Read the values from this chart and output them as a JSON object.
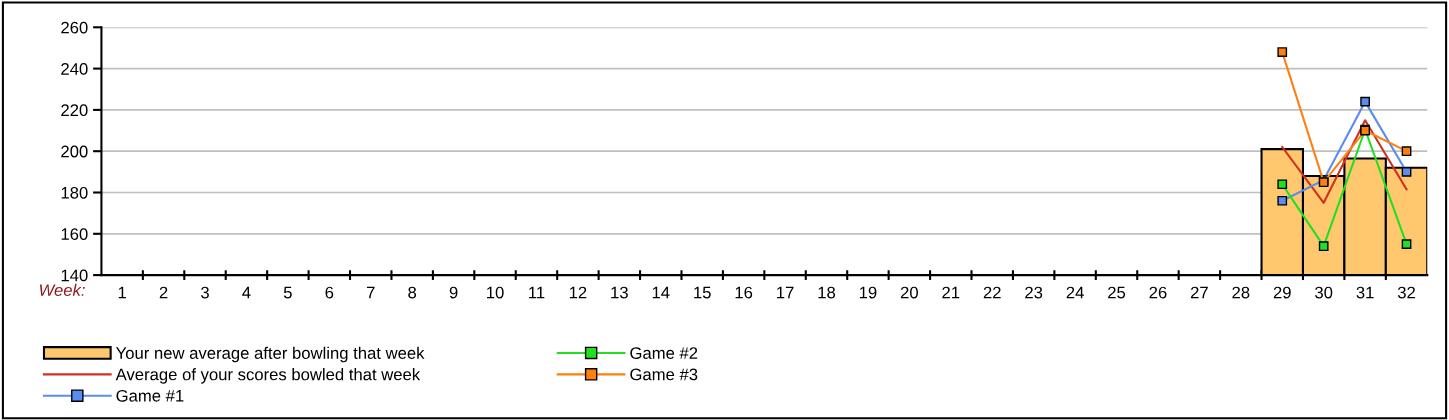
{
  "chart_data": {
    "type": "bar",
    "xlabel": "Week:",
    "categories": [
      "1",
      "2",
      "3",
      "4",
      "5",
      "6",
      "7",
      "8",
      "9",
      "10",
      "11",
      "12",
      "13",
      "14",
      "15",
      "16",
      "17",
      "18",
      "19",
      "20",
      "21",
      "22",
      "23",
      "24",
      "25",
      "26",
      "27",
      "28",
      "29",
      "30",
      "31",
      "32"
    ],
    "series": [
      {
        "name": "Your new average after bowling that week",
        "color": "#ffc86e",
        "values": [
          null,
          null,
          null,
          null,
          null,
          null,
          null,
          null,
          null,
          null,
          null,
          null,
          null,
          null,
          null,
          null,
          null,
          null,
          null,
          null,
          null,
          null,
          null,
          null,
          null,
          null,
          null,
          null,
          201,
          188,
          196.5,
          192
        ]
      },
      {
        "name": "Average of your scores bowled that week",
        "type": "line",
        "color": "#d03020",
        "marker": "none",
        "values": [
          null,
          null,
          null,
          null,
          null,
          null,
          null,
          null,
          null,
          null,
          null,
          null,
          null,
          null,
          null,
          null,
          null,
          null,
          null,
          null,
          null,
          null,
          null,
          null,
          null,
          null,
          null,
          null,
          202,
          175,
          215,
          181.5
        ]
      },
      {
        "name": "Game #1",
        "type": "line",
        "color": "#5b8cf0",
        "marker": "square",
        "values": [
          null,
          null,
          null,
          null,
          null,
          null,
          null,
          null,
          null,
          null,
          null,
          null,
          null,
          null,
          null,
          null,
          null,
          null,
          null,
          null,
          null,
          null,
          null,
          null,
          null,
          null,
          null,
          null,
          176,
          186,
          224,
          190
        ]
      },
      {
        "name": "Game #2",
        "type": "line",
        "color": "#20e020",
        "marker": "square",
        "values": [
          null,
          null,
          null,
          null,
          null,
          null,
          null,
          null,
          null,
          null,
          null,
          null,
          null,
          null,
          null,
          null,
          null,
          null,
          null,
          null,
          null,
          null,
          null,
          null,
          null,
          null,
          null,
          null,
          184,
          154,
          210.5,
          155
        ]
      },
      {
        "name": "Game #3",
        "type": "line",
        "color": "#ff8010",
        "marker": "square",
        "values": [
          null,
          null,
          null,
          null,
          null,
          null,
          null,
          null,
          null,
          null,
          null,
          null,
          null,
          null,
          null,
          null,
          null,
          null,
          null,
          null,
          null,
          null,
          null,
          null,
          null,
          null,
          null,
          null,
          248,
          185,
          210,
          200
        ]
      }
    ],
    "ylim": [
      140,
      260
    ],
    "yticks": [
      140,
      160,
      180,
      200,
      220,
      240,
      260
    ],
    "grid": "y",
    "legend": "bottom"
  }
}
